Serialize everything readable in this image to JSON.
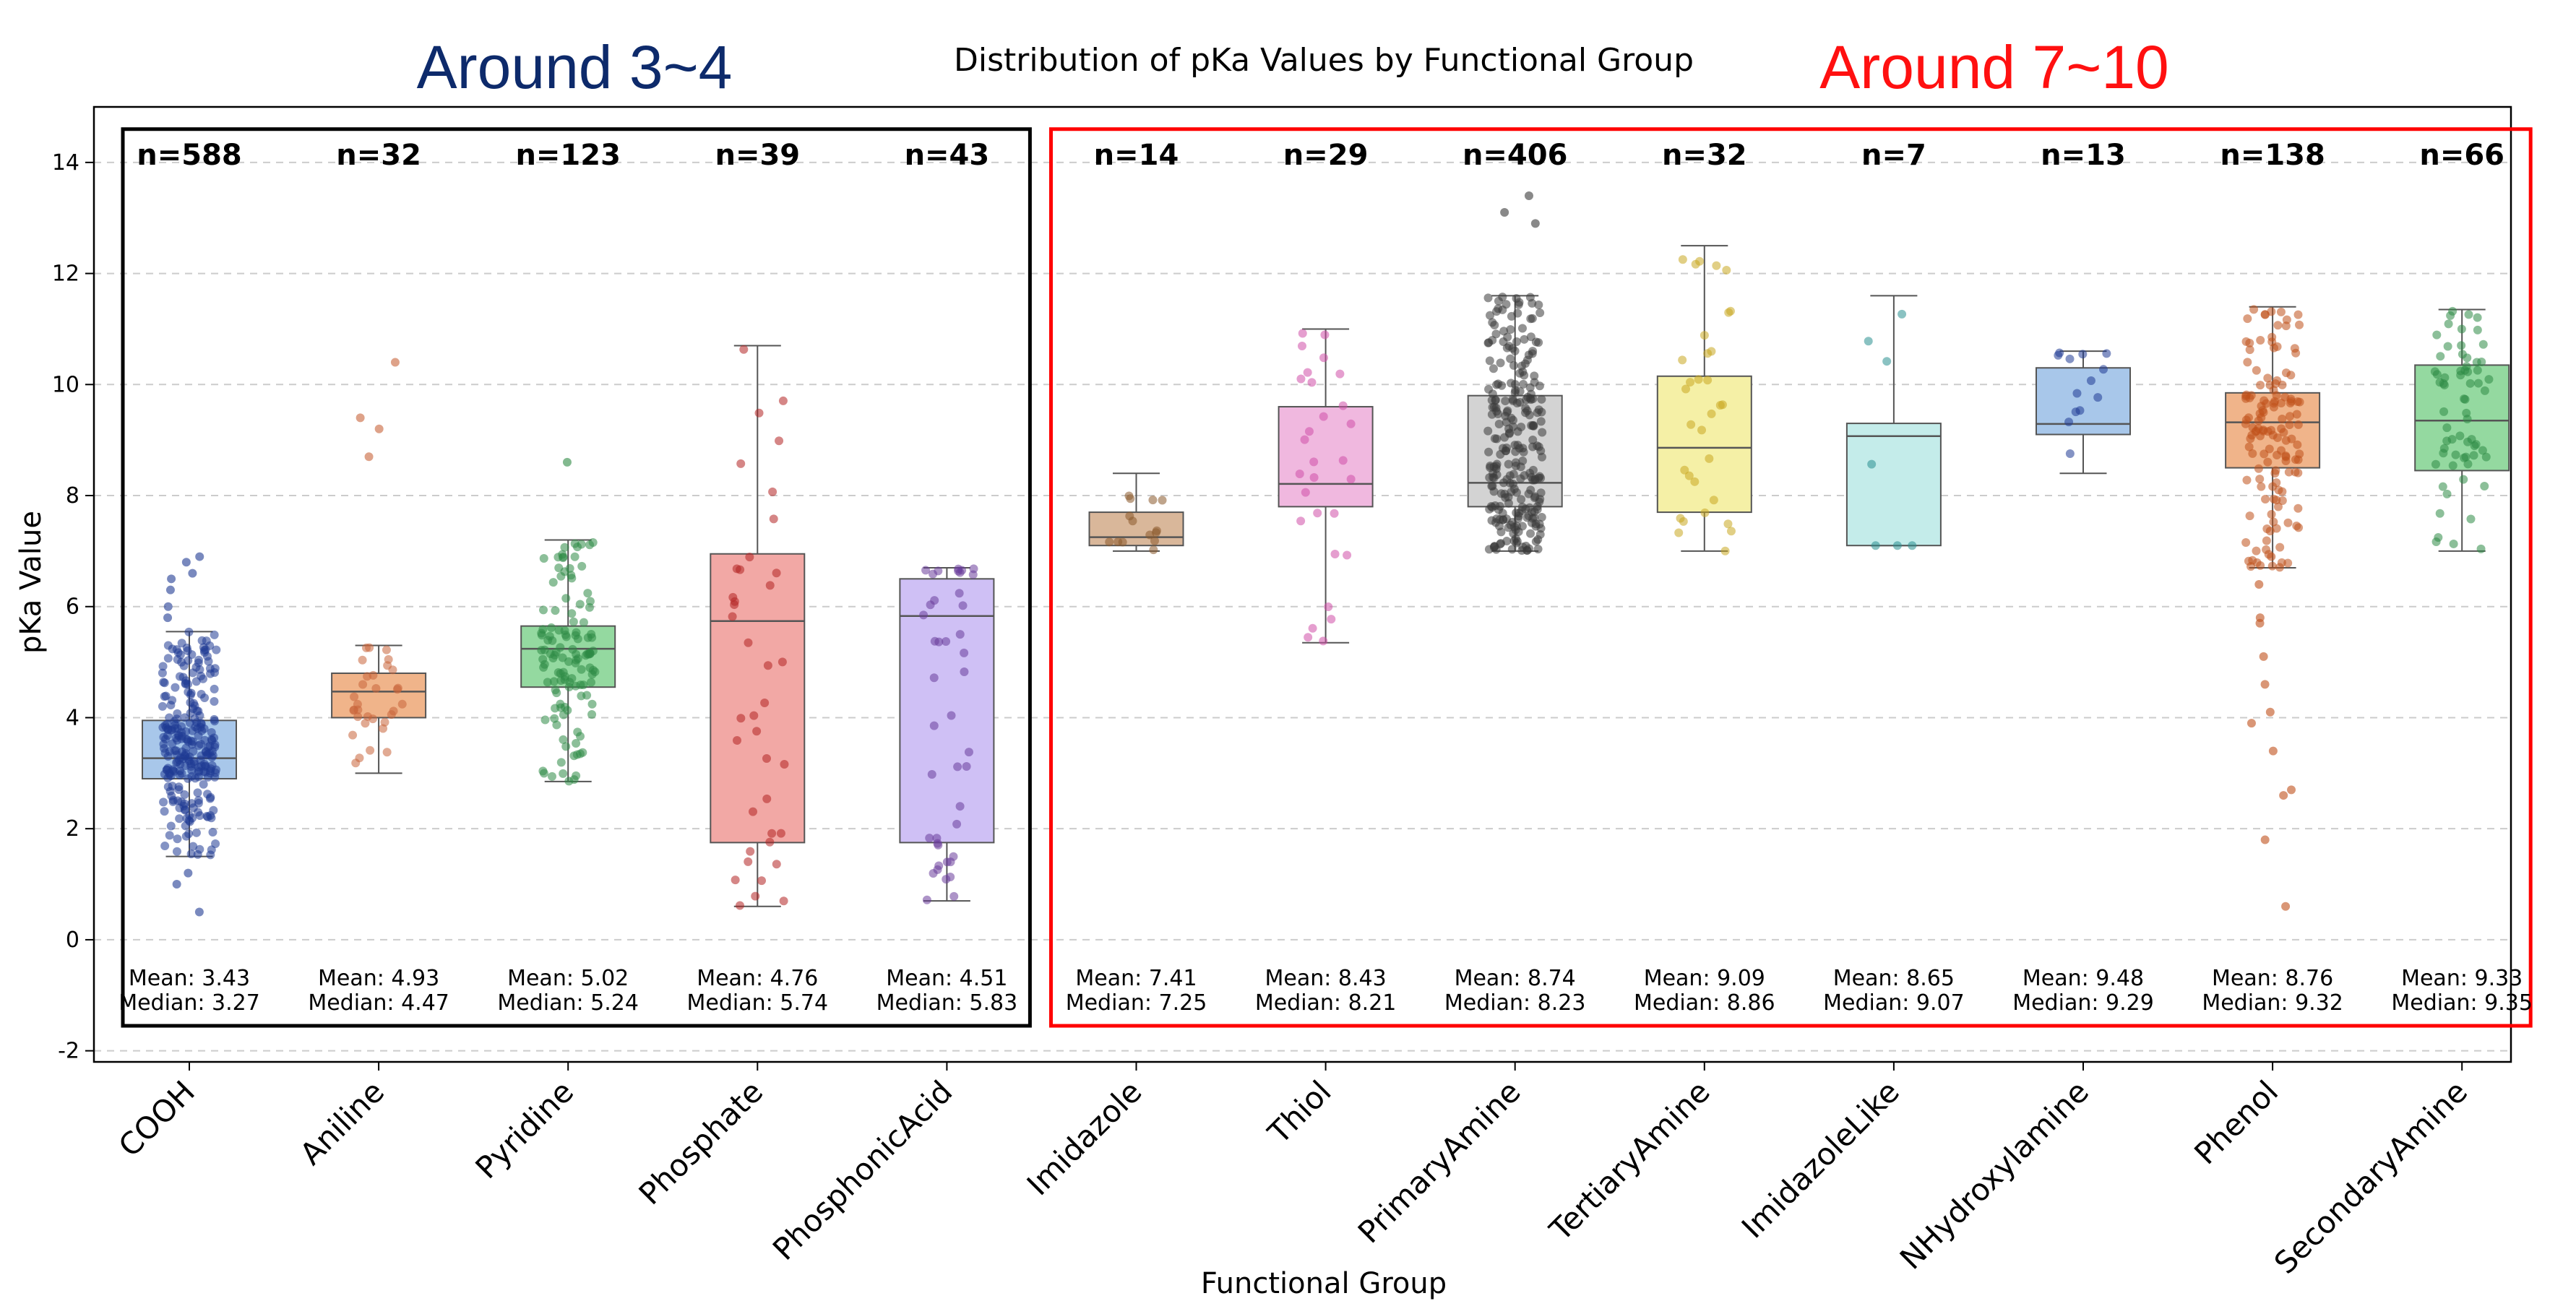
{
  "chart_data": {
    "type": "box",
    "title": "Distribution of pKa Values by Functional Group",
    "xlabel": "Functional Group",
    "ylabel": "pKa Value",
    "ylim": [
      -2.2,
      15.0
    ],
    "yticks": [
      -2,
      0,
      2,
      4,
      6,
      8,
      10,
      12,
      14
    ],
    "grid": "horizontal dashed",
    "categories": [
      "COOH",
      "Aniline",
      "Pyridine",
      "Phosphate",
      "PhosphonicAcid",
      "Imidazole",
      "Thiol",
      "PrimaryAmine",
      "TertiaryAmine",
      "ImidazoleLike",
      "NHydroxylamine",
      "Phenol",
      "SecondaryAmine"
    ],
    "groups": [
      {
        "name": "COOH",
        "n": 588,
        "n_label": "n=588",
        "mean_label": "Mean: 3.43",
        "median_label": "Median: 3.27",
        "min": 1.5,
        "q1": 2.9,
        "median": 3.27,
        "q3": 3.95,
        "max": 5.55,
        "outliers": [
          1.2,
          1.0,
          0.5,
          5.8,
          6.0,
          6.3,
          6.5,
          6.6,
          6.8,
          6.9
        ],
        "color": "#a8c7ea",
        "point_color": "#1f3a93"
      },
      {
        "name": "Aniline",
        "n": 32,
        "n_label": "n=32",
        "mean_label": "Mean: 4.93",
        "median_label": "Median: 4.47",
        "min": 3.0,
        "q1": 4.0,
        "median": 4.47,
        "q3": 4.8,
        "max": 5.3,
        "outliers": [
          8.7,
          9.2,
          9.4,
          10.4
        ],
        "color": "#f0b48a",
        "point_color": "#c8643a"
      },
      {
        "name": "Pyridine",
        "n": 123,
        "n_label": "n=123",
        "mean_label": "Mean: 5.02",
        "median_label": "Median: 5.24",
        "min": 2.85,
        "q1": 4.55,
        "median": 5.24,
        "q3": 5.65,
        "max": 7.2,
        "outliers": [
          8.6
        ],
        "color": "#94d9a0",
        "point_color": "#2e8b45"
      },
      {
        "name": "Phosphate",
        "n": 39,
        "n_label": "n=39",
        "mean_label": "Mean: 4.76",
        "median_label": "Median: 5.74",
        "min": 0.6,
        "q1": 1.75,
        "median": 5.74,
        "q3": 6.95,
        "max": 10.7,
        "outliers": [],
        "color": "#f2a8a5",
        "point_color": "#b22222"
      },
      {
        "name": "PhosphonicAcid",
        "n": 43,
        "n_label": "n=43",
        "mean_label": "Mean: 4.51",
        "median_label": "Median: 5.83",
        "min": 0.7,
        "q1": 1.75,
        "median": 5.83,
        "q3": 6.5,
        "max": 6.7,
        "outliers": [],
        "color": "#cfc0f5",
        "point_color": "#6a3d9a"
      },
      {
        "name": "Imidazole",
        "n": 14,
        "n_label": "n=14",
        "mean_label": "Mean: 7.41",
        "median_label": "Median: 7.25",
        "min": 7.0,
        "q1": 7.1,
        "median": 7.25,
        "q3": 7.7,
        "max": 8.4,
        "outliers": [],
        "color": "#d9b79a",
        "point_color": "#8b5a2b"
      },
      {
        "name": "Thiol",
        "n": 29,
        "n_label": "n=29",
        "mean_label": "Mean: 8.43",
        "median_label": "Median: 8.21",
        "min": 5.35,
        "q1": 7.8,
        "median": 8.21,
        "q3": 9.6,
        "max": 11.0,
        "outliers": [],
        "color": "#f0b8df",
        "point_color": "#d04fa8"
      },
      {
        "name": "PrimaryAmine",
        "n": 406,
        "n_label": "n=406",
        "mean_label": "Mean: 8.74",
        "median_label": "Median: 8.23",
        "min": 7.0,
        "q1": 7.8,
        "median": 8.23,
        "q3": 9.8,
        "max": 11.6,
        "outliers": [
          12.9,
          13.1,
          13.4
        ],
        "color": "#d3d3d3",
        "point_color": "#3a3a3a"
      },
      {
        "name": "TertiaryAmine",
        "n": 32,
        "n_label": "n=32",
        "mean_label": "Mean: 9.09",
        "median_label": "Median: 8.86",
        "min": 7.0,
        "q1": 7.7,
        "median": 8.86,
        "q3": 10.15,
        "max": 12.5,
        "outliers": [],
        "color": "#f5f0a6",
        "point_color": "#c9a820"
      },
      {
        "name": "ImidazoleLike",
        "n": 7,
        "n_label": "n=7",
        "mean_label": "Mean: 8.65",
        "median_label": "Median: 9.07",
        "min": 7.1,
        "q1": 7.1,
        "median": 9.07,
        "q3": 9.3,
        "max": 11.6,
        "outliers": [],
        "color": "#c4ecea",
        "point_color": "#2a9090"
      },
      {
        "name": "NHydroxylamine",
        "n": 13,
        "n_label": "n=13",
        "mean_label": "Mean: 9.48",
        "median_label": "Median: 9.29",
        "min": 8.4,
        "q1": 9.1,
        "median": 9.29,
        "q3": 10.3,
        "max": 10.6,
        "outliers": [],
        "color": "#a8c7ea",
        "point_color": "#1f3a93"
      },
      {
        "name": "Phenol",
        "n": 138,
        "n_label": "n=138",
        "mean_label": "Mean: 8.76",
        "median_label": "Median: 9.32",
        "min": 6.7,
        "q1": 8.5,
        "median": 9.32,
        "q3": 9.85,
        "max": 11.4,
        "outliers": [
          0.6,
          1.8,
          2.6,
          2.7,
          3.4,
          3.9,
          4.1,
          4.6,
          5.1,
          5.7,
          5.8,
          6.4,
          6.9
        ],
        "color": "#f0b48a",
        "point_color": "#c0501a"
      },
      {
        "name": "SecondaryAmine",
        "n": 66,
        "n_label": "n=66",
        "mean_label": "Mean: 9.33",
        "median_label": "Median: 9.35",
        "min": 7.0,
        "q1": 8.45,
        "median": 9.35,
        "q3": 10.35,
        "max": 11.35,
        "outliers": [],
        "color": "#94d9a0",
        "point_color": "#2e8b45"
      }
    ],
    "annotations": [
      {
        "text": "Around 3~4",
        "color": "#0d2a6b",
        "box_color": "#000000",
        "groups": [
          "COOH",
          "Aniline",
          "Pyridine",
          "Phosphate",
          "PhosphonicAcid"
        ]
      },
      {
        "text": "Around 7~10",
        "color": "#ff1010",
        "box_color": "#ff0000",
        "groups": [
          "Imidazole",
          "Thiol",
          "PrimaryAmine",
          "TertiaryAmine",
          "ImidazoleLike",
          "NHydroxylamine",
          "Phenol",
          "SecondaryAmine"
        ]
      }
    ]
  }
}
